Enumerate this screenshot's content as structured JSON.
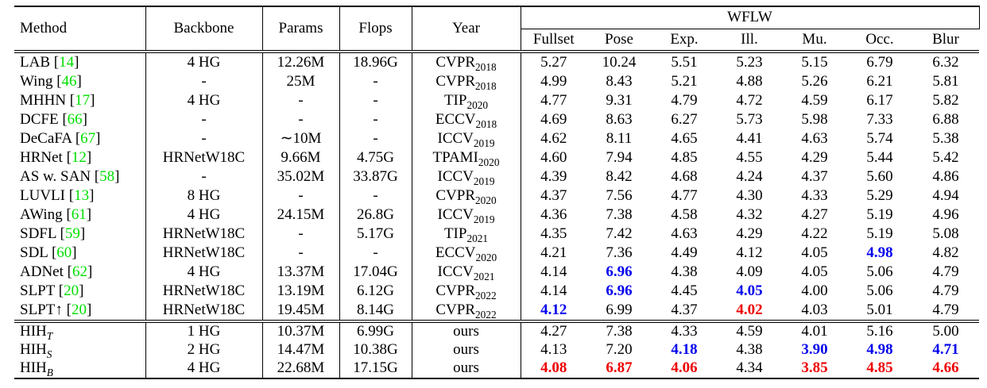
{
  "table": {
    "group_header": "WFLW",
    "columns": [
      "Method",
      "Backbone",
      "Params",
      "Flops",
      "Year"
    ],
    "wflw_columns": [
      "Fullset",
      "Pose",
      "Exp.",
      "Ill.",
      "Mu.",
      "Occ.",
      "Blur"
    ],
    "colors": {
      "citation": "#00DF00",
      "second_best_blue": "#0000EE",
      "best_red": "#EE0000"
    },
    "rows": [
      {
        "method": "LAB",
        "sub": "",
        "cite": "14",
        "backbone": "4 HG",
        "params": "12.26M",
        "flops": "18.96G",
        "venue": "CVPR",
        "vsub": "2018",
        "values": [
          "5.27",
          "10.24",
          "5.51",
          "5.23",
          "5.15",
          "6.79",
          "6.32"
        ],
        "styles": [
          "",
          "",
          "",
          "",
          "",
          "",
          ""
        ]
      },
      {
        "method": "Wing",
        "sub": "",
        "cite": "46",
        "backbone": "-",
        "params": "25M",
        "flops": "-",
        "venue": "CVPR",
        "vsub": "2018",
        "values": [
          "4.99",
          "8.43",
          "5.21",
          "4.88",
          "5.26",
          "6.21",
          "5.81"
        ],
        "styles": [
          "",
          "",
          "",
          "",
          "",
          "",
          ""
        ]
      },
      {
        "method": "MHHN",
        "sub": "",
        "cite": "17",
        "backbone": "4 HG",
        "params": "-",
        "flops": "-",
        "venue": "TIP",
        "vsub": "2020",
        "values": [
          "4.77",
          "9.31",
          "4.79",
          "4.72",
          "4.59",
          "6.17",
          "5.82"
        ],
        "styles": [
          "",
          "",
          "",
          "",
          "",
          "",
          ""
        ]
      },
      {
        "method": "DCFE",
        "sub": "",
        "cite": "66",
        "backbone": "-",
        "params": "-",
        "flops": "-",
        "venue": "ECCV",
        "vsub": "2018",
        "values": [
          "4.69",
          "8.63",
          "6.27",
          "5.73",
          "5.98",
          "7.33",
          "6.88"
        ],
        "styles": [
          "",
          "",
          "",
          "",
          "",
          "",
          ""
        ]
      },
      {
        "method": "DeCaFA",
        "sub": "",
        "cite": "67",
        "backbone": "-",
        "params": "∼10M",
        "flops": "-",
        "venue": "ICCV",
        "vsub": "2019",
        "values": [
          "4.62",
          "8.11",
          "4.65",
          "4.41",
          "4.63",
          "5.74",
          "5.38"
        ],
        "styles": [
          "",
          "",
          "",
          "",
          "",
          "",
          ""
        ]
      },
      {
        "method": "HRNet",
        "sub": "",
        "cite": "12",
        "backbone": "HRNetW18C",
        "params": "9.66M",
        "flops": "4.75G",
        "venue": "TPAMI",
        "vsub": "2020",
        "values": [
          "4.60",
          "7.94",
          "4.85",
          "4.55",
          "4.29",
          "5.44",
          "5.42"
        ],
        "styles": [
          "",
          "",
          "",
          "",
          "",
          "",
          ""
        ]
      },
      {
        "method": "AS w. SAN",
        "sub": "",
        "cite": "58",
        "backbone": "-",
        "params": "35.02M",
        "flops": "33.87G",
        "venue": "ICCV",
        "vsub": "2019",
        "values": [
          "4.39",
          "8.42",
          "4.68",
          "4.24",
          "4.37",
          "5.60",
          "4.86"
        ],
        "styles": [
          "",
          "",
          "",
          "",
          "",
          "",
          ""
        ]
      },
      {
        "method": "LUVLI",
        "sub": "",
        "cite": "13",
        "backbone": "8 HG",
        "params": "-",
        "flops": "-",
        "venue": "CVPR",
        "vsub": "2020",
        "values": [
          "4.37",
          "7.56",
          "4.77",
          "4.30",
          "4.33",
          "5.29",
          "4.94"
        ],
        "styles": [
          "",
          "",
          "",
          "",
          "",
          "",
          ""
        ]
      },
      {
        "method": "AWing",
        "sub": "",
        "cite": "61",
        "backbone": "4 HG",
        "params": "24.15M",
        "flops": "26.8G",
        "venue": "ICCV",
        "vsub": "2019",
        "values": [
          "4.36",
          "7.38",
          "4.58",
          "4.32",
          "4.27",
          "5.19",
          "4.96"
        ],
        "styles": [
          "",
          "",
          "",
          "",
          "",
          "",
          ""
        ]
      },
      {
        "method": "SDFL",
        "sub": "",
        "cite": "59",
        "backbone": "HRNetW18C",
        "params": "-",
        "flops": "5.17G",
        "venue": "TIP",
        "vsub": "2021",
        "values": [
          "4.35",
          "7.42",
          "4.63",
          "4.29",
          "4.22",
          "5.19",
          "5.08"
        ],
        "styles": [
          "",
          "",
          "",
          "",
          "",
          "",
          ""
        ]
      },
      {
        "method": "SDL",
        "sub": "",
        "cite": "60",
        "backbone": "HRNetW18C",
        "params": "-",
        "flops": "-",
        "venue": "ECCV",
        "vsub": "2020",
        "values": [
          "4.21",
          "7.36",
          "4.49",
          "4.12",
          "4.05",
          "4.98",
          "4.82"
        ],
        "styles": [
          "",
          "",
          "",
          "",
          "",
          "blue",
          ""
        ]
      },
      {
        "method": "ADNet",
        "sub": "",
        "cite": "62",
        "backbone": "4 HG",
        "params": "13.37M",
        "flops": "17.04G",
        "venue": "ICCV",
        "vsub": "2021",
        "values": [
          "4.14",
          "6.96",
          "4.38",
          "4.09",
          "4.05",
          "5.06",
          "4.79"
        ],
        "styles": [
          "",
          "blue",
          "",
          "",
          "",
          "",
          ""
        ]
      },
      {
        "method": "SLPT",
        "sub": "",
        "cite": "20",
        "backbone": "HRNetW18C",
        "params": "13.19M",
        "flops": "6.12G",
        "venue": "CVPR",
        "vsub": "2022",
        "values": [
          "4.14",
          "6.96",
          "4.45",
          "4.05",
          "4.00",
          "5.06",
          "4.79"
        ],
        "styles": [
          "",
          "blue",
          "",
          "blue",
          "",
          "",
          ""
        ]
      },
      {
        "method": "SLPT↑",
        "sub": "",
        "cite": "20",
        "backbone": "HRNetW18C",
        "params": "19.45M",
        "flops": "8.14G",
        "venue": "CVPR",
        "vsub": "2022",
        "values": [
          "4.12",
          "6.99",
          "4.37",
          "4.02",
          "4.03",
          "5.01",
          "4.79"
        ],
        "styles": [
          "blue",
          "",
          "",
          "red",
          "",
          "",
          ""
        ]
      }
    ],
    "ours_rows": [
      {
        "method": "HIH",
        "sub": "T",
        "cite": "",
        "backbone": "1 HG",
        "params": "10.37M",
        "flops": "6.99G",
        "venue": "ours",
        "vsub": "",
        "values": [
          "4.27",
          "7.38",
          "4.33",
          "4.59",
          "4.01",
          "5.16",
          "5.00"
        ],
        "styles": [
          "",
          "",
          "",
          "",
          "",
          "",
          ""
        ]
      },
      {
        "method": "HIH",
        "sub": "S",
        "cite": "",
        "backbone": "2 HG",
        "params": "14.47M",
        "flops": "10.38G",
        "venue": "ours",
        "vsub": "",
        "values": [
          "4.13",
          "7.20",
          "4.18",
          "4.38",
          "3.90",
          "4.98",
          "4.71"
        ],
        "styles": [
          "",
          "",
          "blue",
          "",
          "blue",
          "blue",
          "blue"
        ]
      },
      {
        "method": "HIH",
        "sub": "B",
        "cite": "",
        "backbone": "4 HG",
        "params": "22.68M",
        "flops": "17.15G",
        "venue": "ours",
        "vsub": "",
        "values": [
          "4.08",
          "6.87",
          "4.06",
          "4.34",
          "3.85",
          "4.85",
          "4.66"
        ],
        "styles": [
          "red",
          "red",
          "red",
          "",
          "red",
          "red",
          "red"
        ]
      }
    ]
  }
}
